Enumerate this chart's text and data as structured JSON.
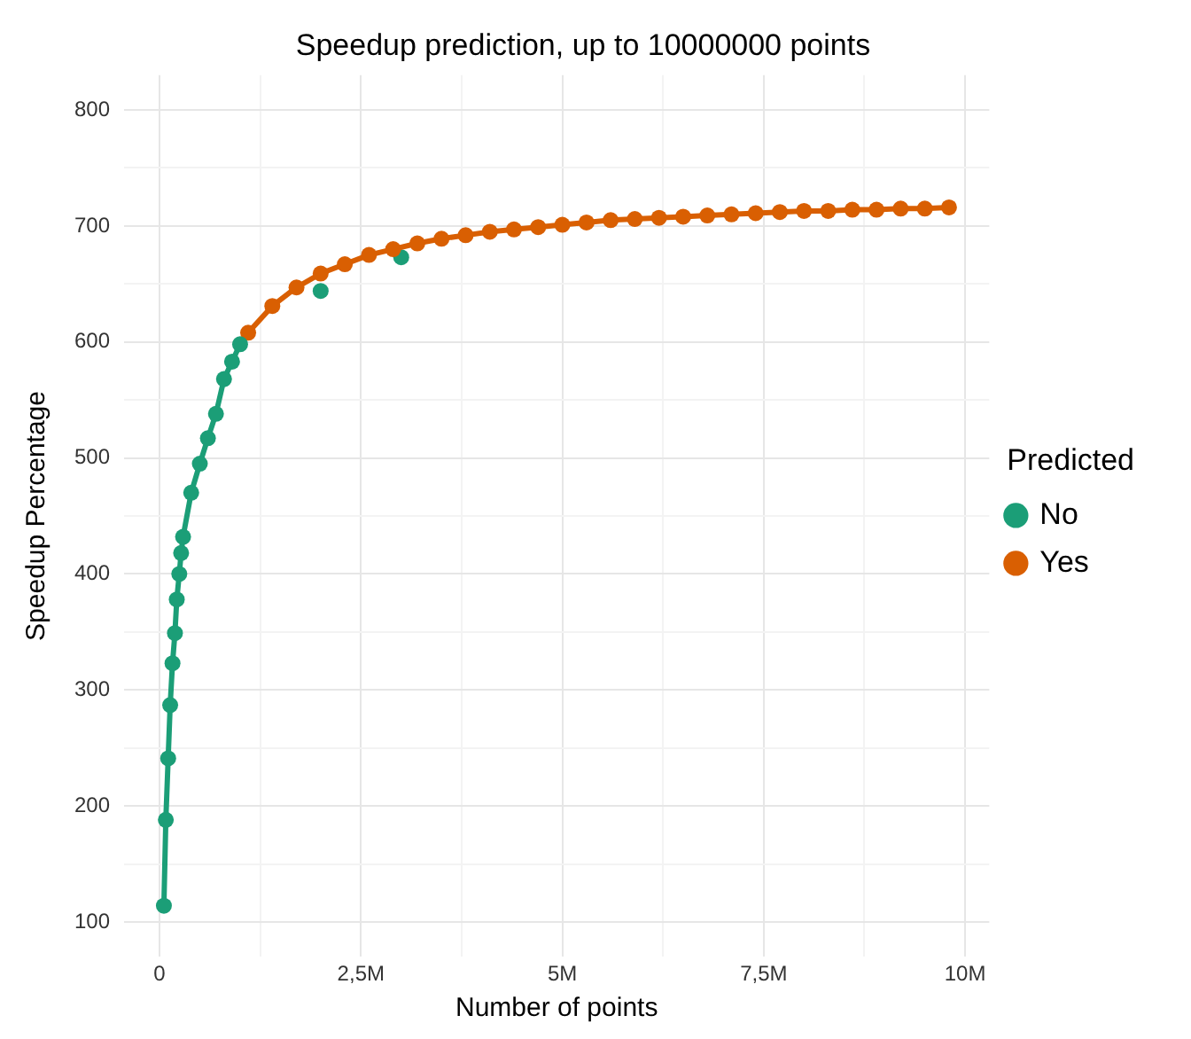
{
  "chart_data": {
    "type": "line",
    "title": "Speedup prediction, up to 10000000 points",
    "xlabel": "Number of points",
    "ylabel": "Speedup Percentage",
    "legend_title": "Predicted",
    "legend": "right",
    "grid": true,
    "marker": "circle",
    "line_style": "solid",
    "xlim": [
      -440000,
      10300000
    ],
    "ylim": [
      70,
      830
    ],
    "xticks": [
      {
        "value": 0,
        "label": "0"
      },
      {
        "value": 1250000,
        "label": null
      },
      {
        "value": 2500000,
        "label": "2,5M"
      },
      {
        "value": 3750000,
        "label": null
      },
      {
        "value": 5000000,
        "label": "5M"
      },
      {
        "value": 6250000,
        "label": null
      },
      {
        "value": 7500000,
        "label": "7,5M"
      },
      {
        "value": 8750000,
        "label": null
      },
      {
        "value": 10000000,
        "label": "10M"
      }
    ],
    "yticks": [
      100,
      {
        "value": 150,
        "label": null
      },
      200,
      {
        "value": 250,
        "label": null
      },
      300,
      {
        "value": 350,
        "label": null
      },
      400,
      {
        "value": 450,
        "label": null
      },
      500,
      {
        "value": 550,
        "label": null
      },
      600,
      {
        "value": 650,
        "label": null
      },
      700,
      {
        "value": 750,
        "label": null
      },
      800
    ],
    "series": [
      {
        "name": "No",
        "color": "#1b9e77",
        "x": [
          54000,
          78000,
          107000,
          132000,
          161000,
          191000,
          214000,
          245000,
          268000,
          292000,
          393000,
          500000,
          600000,
          700000,
          800000,
          900000,
          1000000
        ],
        "values": [
          114,
          188,
          241,
          287,
          323,
          349,
          378,
          400,
          418,
          432,
          470,
          495,
          517,
          538,
          568,
          583,
          598
        ]
      },
      {
        "name": "Yes",
        "color": "#d95f02",
        "x": [
          1100000,
          1400000,
          1700000,
          2000000,
          2300000,
          2600000,
          2900000,
          3200000,
          3500000,
          3800000,
          4100000,
          4400000,
          4700000,
          5000000,
          5300000,
          5600000,
          5900000,
          6200000,
          6500000,
          6800000,
          7100000,
          7400000,
          7700000,
          8000000,
          8300000,
          8600000,
          8900000,
          9200000,
          9500000,
          9800000
        ],
        "values": [
          608,
          631,
          647,
          659,
          667,
          675,
          680,
          685,
          689,
          692,
          695,
          697,
          699,
          701,
          703,
          705,
          706,
          707,
          708,
          709,
          710,
          711,
          712,
          713,
          713,
          714,
          714,
          715,
          715,
          716
        ]
      },
      {
        "color": "#1b9e77",
        "type": "scatter",
        "x": [
          2000000,
          3000000
        ],
        "values": [
          644,
          673
        ]
      }
    ]
  }
}
